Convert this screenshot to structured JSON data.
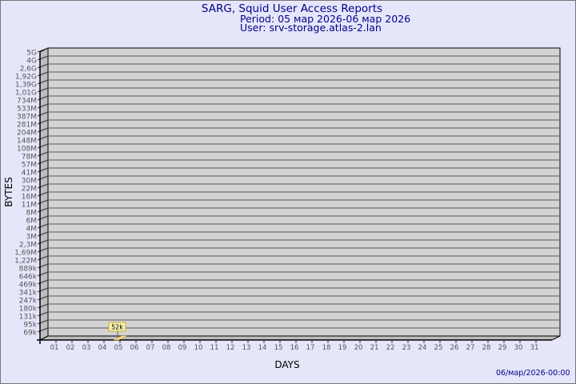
{
  "header": {
    "title": "SARG, Squid User Access Reports",
    "period": "Period: 05 мар 2026-06 мар 2026",
    "user": "User: srv-storage.atlas-2.lan"
  },
  "footer": {
    "timestamp": "06/мар/2026-00:00"
  },
  "colors": {
    "background": "#e6e6fa",
    "plot": "#d3d3d3",
    "bar": "#ffe08a",
    "label_box": "#f5f0b0",
    "title": "#00008b"
  },
  "chart_data": {
    "type": "bar",
    "xlabel": "DAYS",
    "ylabel": "BYTES",
    "y_scale": "log",
    "grid": true,
    "y_ticks": [
      "5G",
      "4G",
      "2,6G",
      "1,92G",
      "1,39G",
      "1,01G",
      "734M",
      "533M",
      "387M",
      "281M",
      "204M",
      "148M",
      "108M",
      "78M",
      "57M",
      "41M",
      "30M",
      "22M",
      "16M",
      "11M",
      "8M",
      "6M",
      "4M",
      "3M",
      "2,3M",
      "1,69M",
      "1,22M",
      "889k",
      "646k",
      "469k",
      "341k",
      "247k",
      "180k",
      "131k",
      "95k",
      "69k"
    ],
    "categories": [
      "01",
      "02",
      "03",
      "04",
      "05",
      "06",
      "07",
      "08",
      "09",
      "10",
      "11",
      "12",
      "13",
      "14",
      "15",
      "16",
      "17",
      "18",
      "19",
      "20",
      "21",
      "22",
      "23",
      "24",
      "25",
      "26",
      "27",
      "28",
      "29",
      "30",
      "31"
    ],
    "series": [
      {
        "values": [
          null,
          null,
          null,
          null,
          52000,
          null,
          null,
          null,
          null,
          null,
          null,
          null,
          null,
          null,
          null,
          null,
          null,
          null,
          null,
          null,
          null,
          null,
          null,
          null,
          null,
          null,
          null,
          null,
          null,
          null,
          null
        ]
      }
    ],
    "data_labels": [
      {
        "category": "05",
        "text": "52k"
      }
    ]
  }
}
